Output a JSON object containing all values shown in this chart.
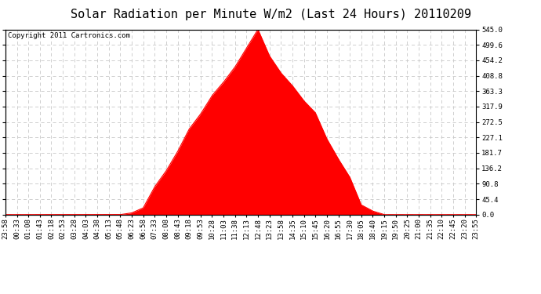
{
  "title": "Solar Radiation per Minute W/m2 (Last 24 Hours) 20110209",
  "copyright": "Copyright 2011 Cartronics.com",
  "y_max": 545.0,
  "y_min": 0.0,
  "y_ticks": [
    0.0,
    45.4,
    90.8,
    136.2,
    181.7,
    227.1,
    272.5,
    317.9,
    363.3,
    408.8,
    454.2,
    499.6,
    545.0
  ],
  "x_labels": [
    "23:58",
    "00:33",
    "01:08",
    "01:43",
    "02:18",
    "02:53",
    "03:28",
    "04:03",
    "04:38",
    "05:13",
    "05:48",
    "06:23",
    "06:58",
    "07:33",
    "08:08",
    "08:43",
    "09:18",
    "09:53",
    "10:28",
    "11:03",
    "11:38",
    "12:13",
    "12:48",
    "13:23",
    "13:58",
    "14:35",
    "15:10",
    "15:45",
    "16:20",
    "16:55",
    "17:30",
    "18:05",
    "18:40",
    "19:15",
    "19:50",
    "20:25",
    "21:00",
    "21:35",
    "22:10",
    "22:45",
    "23:20",
    "23:55"
  ],
  "solar_y": [
    0,
    0,
    0,
    0,
    0,
    0,
    0,
    0,
    0,
    0,
    0,
    5,
    30,
    75,
    130,
    180,
    240,
    295,
    350,
    400,
    440,
    490,
    545,
    460,
    420,
    390,
    340,
    290,
    230,
    165,
    100,
    40,
    8,
    0,
    0,
    0,
    0,
    0,
    0,
    0,
    0,
    0
  ],
  "fill_color": "#FF0000",
  "line_color": "#FF0000",
  "dashed_line_color": "#FF0000",
  "background_color": "#FFFFFF",
  "grid_color": "#C8C8C8",
  "title_fontsize": 11,
  "tick_fontsize": 6.5,
  "copyright_fontsize": 6.5
}
